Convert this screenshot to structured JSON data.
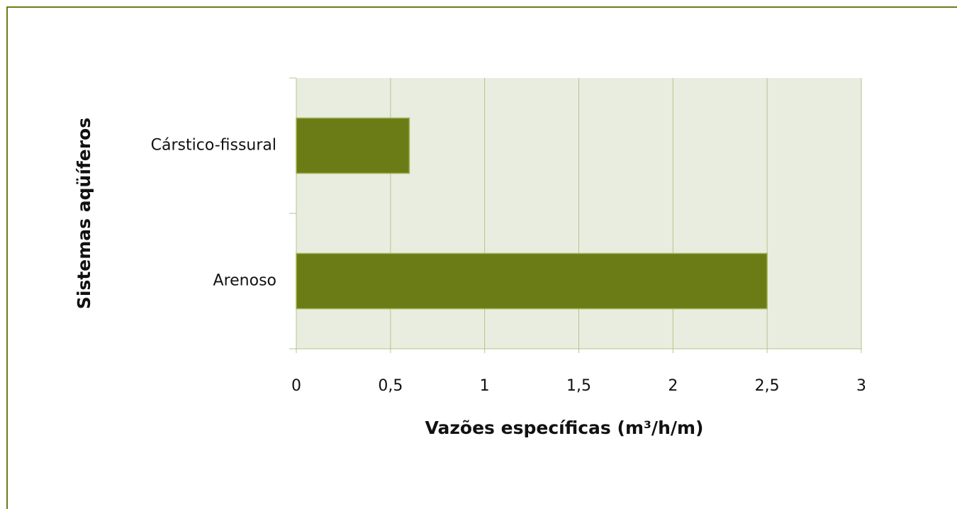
{
  "chart_data": {
    "type": "bar",
    "orientation": "horizontal",
    "x_label": "Vazões específicas (m³/h/m)",
    "y_label": "Sistemas aqüíferos",
    "categories": [
      "Cárstico-fissural",
      "Arenoso"
    ],
    "values": [
      0.6,
      2.5
    ],
    "color": "#6b7c16",
    "xlim": [
      0,
      3
    ],
    "xticks": [
      0,
      {
        "value": 0.5,
        "label": "0,5"
      },
      1,
      {
        "value": 1.5,
        "label": "1,5"
      },
      2,
      {
        "value": 2.5,
        "label": "2,5"
      },
      3
    ],
    "grid": true
  }
}
